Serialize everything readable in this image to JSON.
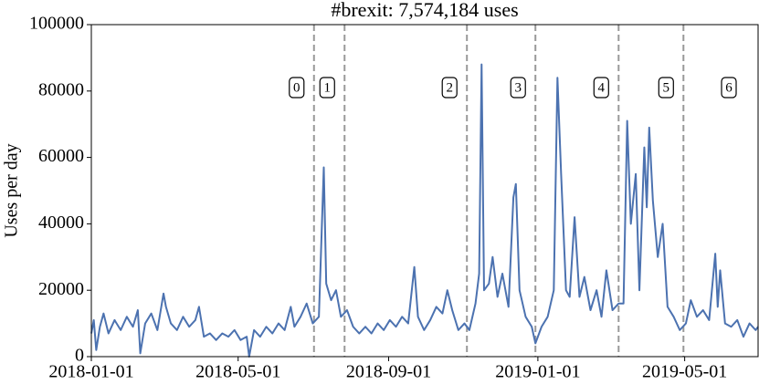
{
  "chart_data": {
    "type": "line",
    "title": "#brexit: 7,574,184 uses",
    "y_label": "Uses per day",
    "color": "#4c72b0",
    "xlim": [
      "2018-01-01",
      "2019-06-30"
    ],
    "xticks": [
      "2018-01-01",
      "2018-05-01",
      "2018-09-01",
      "2019-01-01",
      "2019-05-01"
    ],
    "ylim": [
      0,
      100000
    ],
    "yticks": [
      0,
      20000,
      40000,
      60000,
      80000,
      100000
    ],
    "grid": false,
    "periods": [
      "0",
      "1",
      "2",
      "3",
      "4",
      "5",
      "6"
    ],
    "period_breaks": [
      "2018-07-02",
      "2018-07-27",
      "2018-11-04",
      "2018-12-30",
      "2019-03-08",
      "2019-04-30"
    ],
    "x": [
      "2018-01-01",
      "2018-01-03",
      "2018-01-05",
      "2018-01-08",
      "2018-01-11",
      "2018-01-15",
      "2018-01-20",
      "2018-01-25",
      "2018-01-30",
      "2018-02-04",
      "2018-02-08",
      "2018-02-10",
      "2018-02-14",
      "2018-02-19",
      "2018-02-24",
      "2018-03-01",
      "2018-03-03",
      "2018-03-07",
      "2018-03-12",
      "2018-03-17",
      "2018-03-22",
      "2018-03-27",
      "2018-03-30",
      "2018-04-03",
      "2018-04-08",
      "2018-04-13",
      "2018-04-18",
      "2018-04-23",
      "2018-04-28",
      "2018-05-03",
      "2018-05-08",
      "2018-05-10",
      "2018-05-14",
      "2018-05-19",
      "2018-05-24",
      "2018-05-29",
      "2018-06-03",
      "2018-06-08",
      "2018-06-13",
      "2018-06-16",
      "2018-06-21",
      "2018-06-26",
      "2018-07-01",
      "2018-07-06",
      "2018-07-10",
      "2018-07-12",
      "2018-07-16",
      "2018-07-20",
      "2018-07-24",
      "2018-07-29",
      "2018-08-03",
      "2018-08-08",
      "2018-08-13",
      "2018-08-18",
      "2018-08-23",
      "2018-08-28",
      "2018-09-02",
      "2018-09-07",
      "2018-09-12",
      "2018-09-17",
      "2018-09-22",
      "2018-09-25",
      "2018-09-30",
      "2018-10-05",
      "2018-10-10",
      "2018-10-15",
      "2018-10-19",
      "2018-10-23",
      "2018-10-28",
      "2018-11-02",
      "2018-11-06",
      "2018-11-11",
      "2018-11-14",
      "2018-11-16",
      "2018-11-18",
      "2018-11-22",
      "2018-11-25",
      "2018-11-29",
      "2018-12-03",
      "2018-12-08",
      "2018-12-12",
      "2018-12-14",
      "2018-12-17",
      "2018-12-22",
      "2018-12-27",
      "2018-12-30",
      "2019-01-04",
      "2019-01-09",
      "2019-01-14",
      "2019-01-17",
      "2019-01-20",
      "2019-01-24",
      "2019-01-27",
      "2019-01-31",
      "2019-02-04",
      "2019-02-08",
      "2019-02-13",
      "2019-02-18",
      "2019-02-22",
      "2019-02-26",
      "2019-03-03",
      "2019-03-08",
      "2019-03-12",
      "2019-03-15",
      "2019-03-18",
      "2019-03-22",
      "2019-03-25",
      "2019-03-29",
      "2019-03-31",
      "2019-04-02",
      "2019-04-05",
      "2019-04-09",
      "2019-04-13",
      "2019-04-17",
      "2019-04-22",
      "2019-04-27",
      "2019-05-02",
      "2019-05-06",
      "2019-05-11",
      "2019-05-16",
      "2019-05-21",
      "2019-05-26",
      "2019-05-28",
      "2019-05-30",
      "2019-06-03",
      "2019-06-08",
      "2019-06-13",
      "2019-06-18",
      "2019-06-23",
      "2019-06-28",
      "2019-06-30"
    ],
    "values": [
      7000,
      11000,
      2000,
      9000,
      13000,
      7000,
      11000,
      8000,
      12000,
      9000,
      14000,
      1000,
      10000,
      13000,
      8000,
      19000,
      15000,
      10000,
      8000,
      12000,
      9000,
      11000,
      15000,
      6000,
      7000,
      5000,
      7000,
      6000,
      8000,
      5000,
      6000,
      0,
      8000,
      6000,
      9000,
      7000,
      10000,
      8000,
      15000,
      9000,
      12000,
      16000,
      10000,
      12000,
      57000,
      22000,
      17000,
      20000,
      12000,
      14000,
      9000,
      7000,
      9000,
      7000,
      10000,
      8000,
      11000,
      9000,
      12000,
      10000,
      27000,
      12000,
      8000,
      11000,
      15000,
      13000,
      20000,
      14000,
      8000,
      10000,
      8000,
      16000,
      25000,
      88000,
      20000,
      22000,
      30000,
      18000,
      25000,
      15000,
      48000,
      52000,
      20000,
      12000,
      9000,
      4000,
      9000,
      12000,
      20000,
      84000,
      55000,
      20000,
      18000,
      42000,
      18000,
      24000,
      14000,
      20000,
      12000,
      26000,
      14000,
      16000,
      16000,
      71000,
      40000,
      55000,
      20000,
      63000,
      45000,
      69000,
      47000,
      30000,
      40000,
      15000,
      12000,
      8000,
      10000,
      17000,
      12000,
      14000,
      11000,
      31000,
      15000,
      26000,
      10000,
      9000,
      11000,
      6000,
      10000,
      8000,
      9000
    ]
  }
}
